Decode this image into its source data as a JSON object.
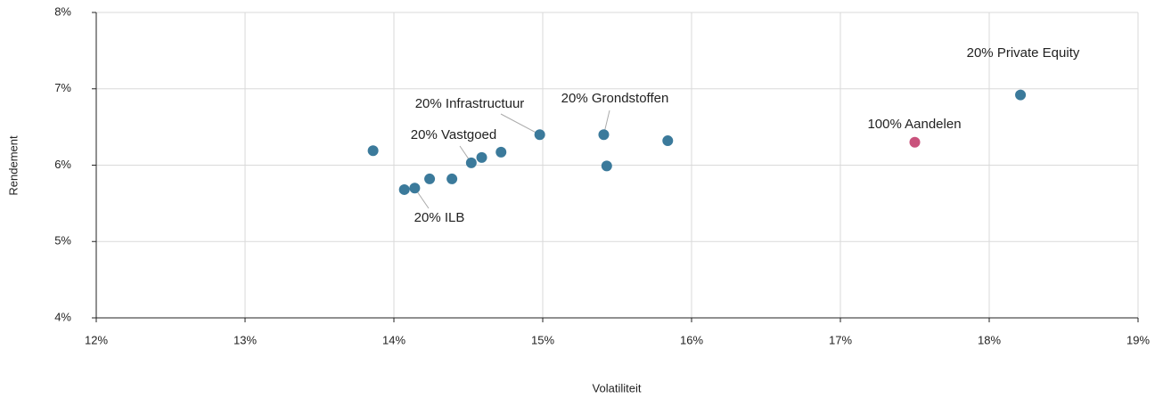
{
  "chart_data": {
    "type": "scatter",
    "xlabel": "Volatiliteit",
    "ylabel": "Rendement",
    "xlim": [
      12,
      19
    ],
    "ylim": [
      4,
      8
    ],
    "xticks": [
      {
        "value": 12,
        "label": "12%"
      },
      {
        "value": 13,
        "label": "13%"
      },
      {
        "value": 14,
        "label": "14%"
      },
      {
        "value": 15,
        "label": "15%"
      },
      {
        "value": 16,
        "label": "16%"
      },
      {
        "value": 17,
        "label": "17%"
      },
      {
        "value": 18,
        "label": "18%"
      },
      {
        "value": 19,
        "label": "19%"
      }
    ],
    "yticks": [
      {
        "value": 4,
        "label": "4%"
      },
      {
        "value": 5,
        "label": "5%"
      },
      {
        "value": 6,
        "label": "6%"
      },
      {
        "value": 7,
        "label": "7%"
      },
      {
        "value": 8,
        "label": "8%"
      }
    ],
    "grid": true,
    "series": [
      {
        "color": "#3b7a9b",
        "x": [
          13.86,
          14.07,
          14.14,
          14.24,
          14.39,
          14.52,
          14.59,
          14.72,
          14.98,
          15.41,
          15.43,
          15.84,
          18.21
        ],
        "values": [
          6.19,
          5.68,
          5.7,
          5.82,
          5.82,
          6.03,
          6.1,
          6.17,
          6.4,
          6.4,
          5.99,
          6.32,
          6.92
        ]
      },
      {
        "color": "#c9527c",
        "x": [
          17.5
        ],
        "values": [
          6.3
        ]
      }
    ],
    "annotations": [
      "20% Private Equity",
      "100% Aandelen",
      "20% Grondstoffen",
      "20% Infrastructuur",
      "20% Vastgoed",
      "20% ILB"
    ]
  }
}
